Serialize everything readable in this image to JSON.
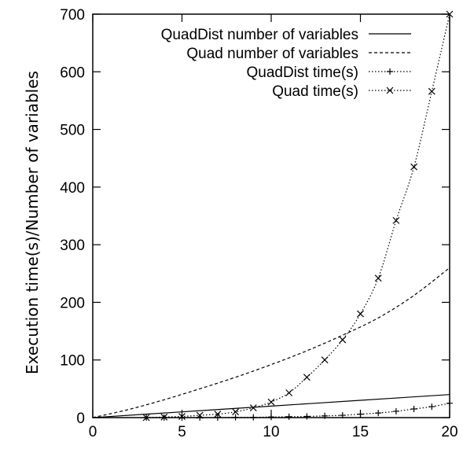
{
  "chart_data": {
    "type": "line",
    "title": "",
    "xlabel": "",
    "ylabel": "Execution time(s)/Number of variables",
    "xlim": [
      0,
      20
    ],
    "ylim": [
      0,
      700
    ],
    "xticks": [
      "0",
      "5",
      "10",
      "15",
      "20"
    ],
    "yticks": [
      "0",
      "100",
      "200",
      "300",
      "400",
      "500",
      "600",
      "700"
    ],
    "grid": false,
    "legend_position": "top-right",
    "series": [
      {
        "name": "QuadDist number of variables",
        "style": "solid",
        "marker": "none",
        "x": [
          0,
          5,
          10,
          15,
          20
        ],
        "y": [
          0,
          10,
          20,
          30,
          40
        ]
      },
      {
        "name": "Quad number of variables",
        "style": "dashed",
        "marker": "none",
        "x": [
          0,
          2,
          4,
          6,
          8,
          10,
          12,
          14,
          16,
          18,
          20
        ],
        "y": [
          0,
          14,
          31,
          50,
          70,
          92,
          116,
          143,
          173,
          212,
          260
        ]
      },
      {
        "name": "QuadDist time(s)",
        "style": "dotted",
        "marker": "plus",
        "x": [
          3,
          4,
          5,
          6,
          7,
          8,
          9,
          10,
          11,
          12,
          13,
          14,
          15,
          16,
          17,
          18,
          19,
          20
        ],
        "y": [
          0,
          0,
          0,
          0,
          0,
          0.5,
          0.5,
          1,
          1.5,
          2,
          3,
          4,
          6,
          8,
          11,
          15,
          19,
          25
        ]
      },
      {
        "name": "Quad time(s)",
        "style": "dotted",
        "marker": "cross",
        "x": [
          3,
          4,
          5,
          6,
          7,
          8,
          9,
          10,
          11,
          12,
          13,
          14,
          15,
          16,
          17,
          18,
          19,
          20
        ],
        "y": [
          0,
          1,
          2,
          4,
          6,
          10,
          17,
          27,
          43,
          70,
          100,
          135,
          180,
          242,
          342,
          435,
          566,
          700
        ]
      }
    ]
  }
}
